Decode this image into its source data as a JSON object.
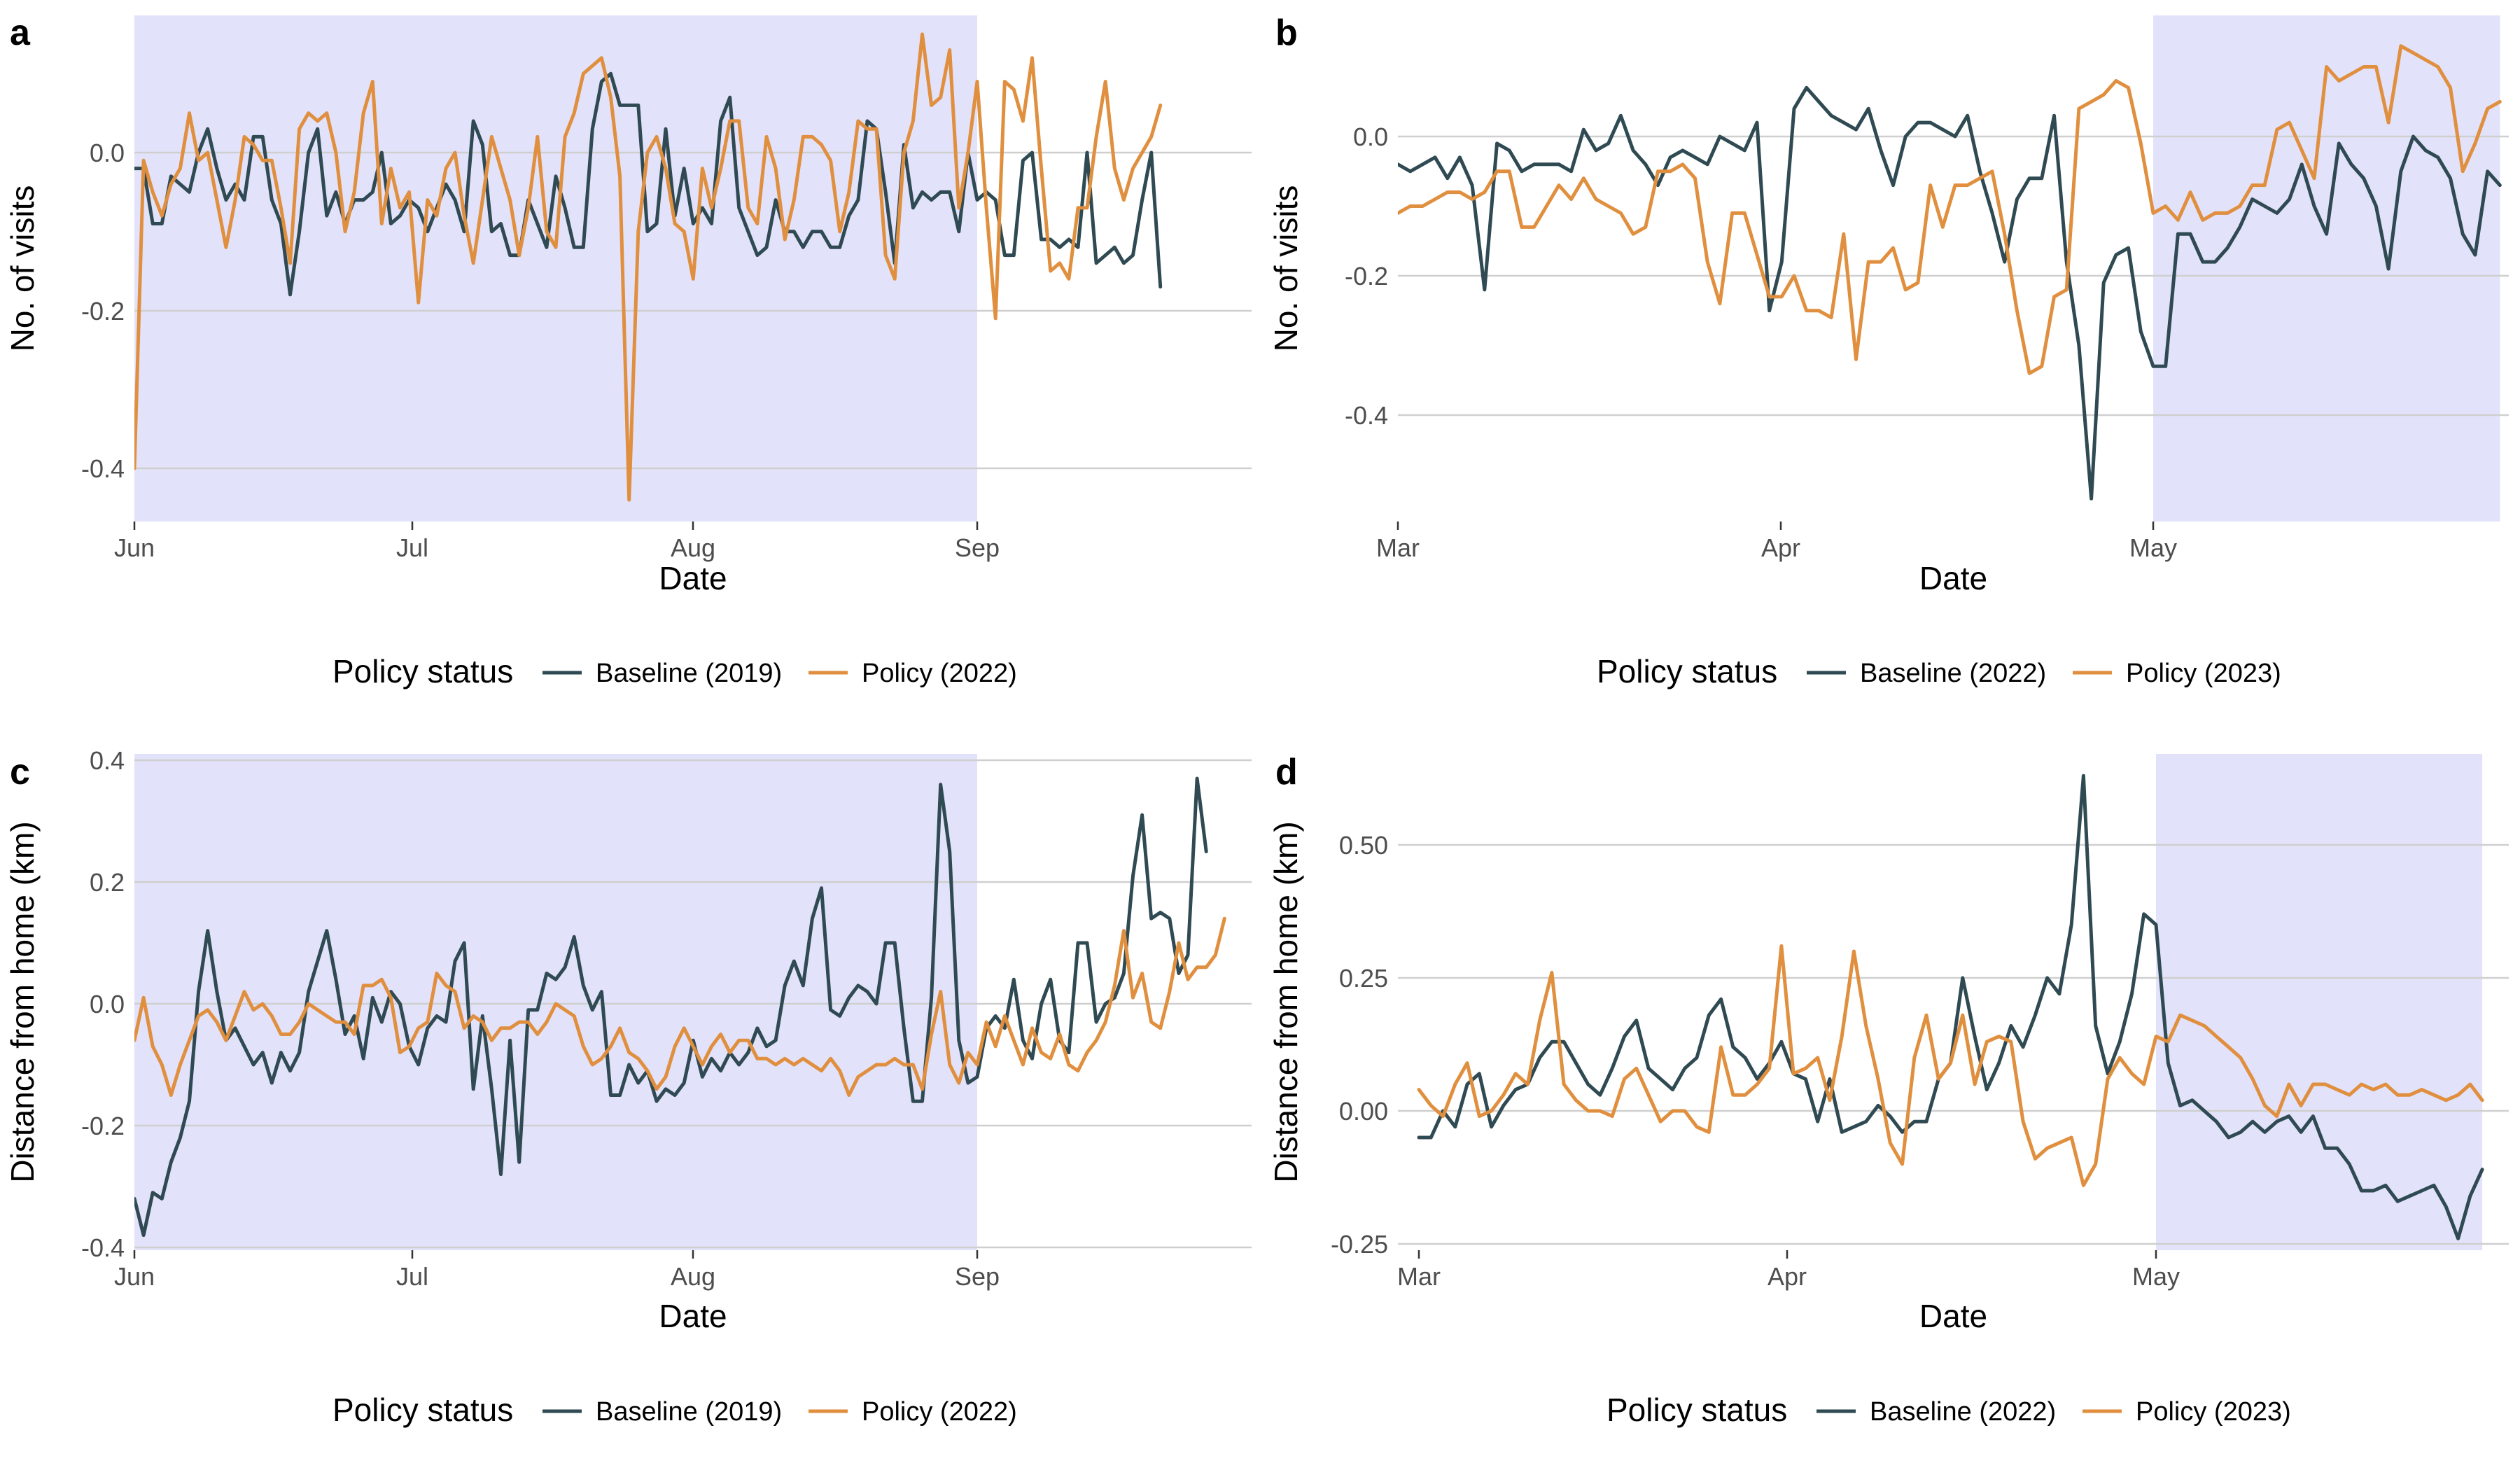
{
  "colors": {
    "baseline": "#2f4a52",
    "policy": "#e08f3e",
    "shade": "#e2e2fb",
    "grid": "#cfcfcf"
  },
  "legend": {
    "title": "Policy status"
  },
  "chart_data": [
    {
      "panel": "a",
      "type": "line",
      "xlabel": "Date",
      "ylabel": "No. of visits",
      "x_start": "2019-06-01",
      "x_range": [
        "Jun",
        "end of Sep"
      ],
      "xticks": [
        "Jun",
        "Jul",
        "Aug",
        "Sep"
      ],
      "yticks": [
        "0.0",
        "-0.2",
        "-0.4"
      ],
      "ylim": [
        -0.46,
        0.175
      ],
      "policy_period_shaded": "Jun 1 - Sep 1",
      "series": [
        {
          "name": "Baseline (2019)",
          "color_key": "baseline",
          "values": [
            -0.02,
            -0.02,
            -0.09,
            -0.09,
            -0.03,
            -0.04,
            -0.05,
            0.0,
            0.03,
            -0.02,
            -0.06,
            -0.04,
            -0.06,
            0.02,
            0.02,
            -0.06,
            -0.09,
            -0.18,
            -0.1,
            0.0,
            0.03,
            -0.08,
            -0.05,
            -0.09,
            -0.06,
            -0.06,
            -0.05,
            0.0,
            -0.09,
            -0.08,
            -0.06,
            -0.07,
            -0.1,
            -0.07,
            -0.04,
            -0.06,
            -0.1,
            0.04,
            0.01,
            -0.1,
            -0.09,
            -0.13,
            -0.13,
            -0.06,
            -0.09,
            -0.12,
            -0.03,
            -0.07,
            -0.12,
            -0.12,
            0.03,
            0.09,
            0.1,
            0.06,
            0.06,
            0.06,
            -0.1,
            -0.09,
            0.03,
            -0.08,
            -0.02,
            -0.09,
            -0.07,
            -0.09,
            0.04,
            0.07,
            -0.07,
            -0.1,
            -0.13,
            -0.12,
            -0.06,
            -0.1,
            -0.1,
            -0.12,
            -0.1,
            -0.1,
            -0.12,
            -0.12,
            -0.08,
            -0.06,
            0.04,
            0.03,
            -0.05,
            -0.14,
            0.01,
            -0.07,
            -0.05,
            -0.06,
            -0.05,
            -0.05,
            -0.1,
            0.0,
            -0.06,
            -0.05,
            -0.06,
            -0.13,
            -0.13,
            -0.01,
            0.0,
            -0.11,
            -0.11,
            -0.12,
            -0.11,
            -0.12,
            0.0,
            -0.14,
            -0.13,
            -0.12,
            -0.14,
            -0.13,
            -0.06,
            0.0,
            -0.17
          ]
        },
        {
          "name": "Policy (2022)",
          "color_key": "policy",
          "values": [
            -0.4,
            -0.01,
            -0.05,
            -0.08,
            -0.04,
            -0.02,
            0.05,
            -0.01,
            0.0,
            -0.06,
            -0.12,
            -0.06,
            0.02,
            0.01,
            -0.01,
            -0.01,
            -0.07,
            -0.14,
            0.03,
            0.05,
            0.04,
            0.05,
            0.0,
            -0.1,
            -0.05,
            0.05,
            0.09,
            -0.09,
            -0.02,
            -0.07,
            -0.05,
            -0.19,
            -0.06,
            -0.08,
            -0.02,
            0.0,
            -0.08,
            -0.14,
            -0.06,
            0.02,
            -0.02,
            -0.06,
            -0.13,
            -0.07,
            0.02,
            -0.1,
            -0.12,
            0.02,
            0.05,
            0.1,
            0.11,
            0.12,
            0.07,
            -0.03,
            -0.44,
            -0.1,
            0.0,
            0.02,
            -0.02,
            -0.09,
            -0.1,
            -0.16,
            -0.02,
            -0.07,
            -0.02,
            0.04,
            0.04,
            -0.07,
            -0.09,
            0.02,
            -0.02,
            -0.11,
            -0.06,
            0.02,
            0.02,
            0.01,
            -0.01,
            -0.1,
            -0.05,
            0.04,
            0.03,
            0.03,
            -0.13,
            -0.16,
            0.0,
            0.04,
            0.15,
            0.06,
            0.07,
            0.13,
            -0.07,
            0.0,
            0.09,
            -0.07,
            -0.21,
            0.09,
            0.08,
            0.04,
            0.12,
            -0.02,
            -0.15,
            -0.14,
            -0.16,
            -0.07,
            -0.07,
            0.02,
            0.09,
            -0.02,
            -0.06,
            -0.02,
            0.0,
            0.02,
            0.06
          ]
        }
      ]
    },
    {
      "panel": "b",
      "type": "line",
      "xlabel": "Date",
      "ylabel": "No. of visits",
      "x_start": "2022-03-01",
      "x_range": [
        "Mar",
        "end of May"
      ],
      "xticks": [
        "Mar",
        "Apr",
        "May"
      ],
      "yticks": [
        "0.0",
        "-0.2",
        "-0.4"
      ],
      "ylim": [
        -0.56,
        0.175
      ],
      "policy_period_shaded": "May 1 - end of May",
      "series": [
        {
          "name": "Baseline (2022)",
          "color_key": "baseline",
          "values": [
            -0.04,
            -0.05,
            -0.04,
            -0.03,
            -0.06,
            -0.03,
            -0.07,
            -0.22,
            -0.01,
            -0.02,
            -0.05,
            -0.04,
            -0.04,
            -0.04,
            -0.05,
            0.01,
            -0.02,
            -0.01,
            0.03,
            -0.02,
            -0.04,
            -0.07,
            -0.03,
            -0.02,
            -0.03,
            -0.04,
            0.0,
            -0.01,
            -0.02,
            0.02,
            -0.25,
            -0.18,
            0.04,
            0.07,
            0.05,
            0.03,
            0.02,
            0.01,
            0.04,
            -0.02,
            -0.07,
            0.0,
            0.02,
            0.02,
            0.01,
            0.0,
            0.03,
            -0.05,
            -0.11,
            -0.18,
            -0.09,
            -0.06,
            -0.06,
            0.03,
            -0.18,
            -0.3,
            -0.52,
            -0.21,
            -0.17,
            -0.16,
            -0.28,
            -0.33,
            -0.33,
            -0.14,
            -0.14,
            -0.18,
            -0.18,
            -0.16,
            -0.13,
            -0.09,
            -0.1,
            -0.11,
            -0.09,
            -0.04,
            -0.1,
            -0.14,
            -0.01,
            -0.04,
            -0.06,
            -0.1,
            -0.19,
            -0.05,
            0.0,
            -0.02,
            -0.03,
            -0.06,
            -0.14,
            -0.17,
            -0.05,
            -0.07
          ]
        },
        {
          "name": "Policy (2023)",
          "color_key": "policy",
          "values": [
            -0.11,
            -0.1,
            -0.1,
            -0.09,
            -0.08,
            -0.08,
            -0.09,
            -0.08,
            -0.05,
            -0.05,
            -0.13,
            -0.13,
            -0.1,
            -0.07,
            -0.09,
            -0.06,
            -0.09,
            -0.1,
            -0.11,
            -0.14,
            -0.13,
            -0.05,
            -0.05,
            -0.04,
            -0.06,
            -0.18,
            -0.24,
            -0.11,
            -0.11,
            -0.17,
            -0.23,
            -0.23,
            -0.2,
            -0.25,
            -0.25,
            -0.26,
            -0.14,
            -0.32,
            -0.18,
            -0.18,
            -0.16,
            -0.22,
            -0.21,
            -0.07,
            -0.13,
            -0.07,
            -0.07,
            -0.06,
            -0.05,
            -0.14,
            -0.25,
            -0.34,
            -0.33,
            -0.23,
            -0.22,
            0.04,
            0.05,
            0.06,
            0.08,
            0.07,
            -0.01,
            -0.11,
            -0.1,
            -0.12,
            -0.08,
            -0.12,
            -0.11,
            -0.11,
            -0.1,
            -0.07,
            -0.07,
            0.01,
            0.02,
            -0.02,
            -0.06,
            0.1,
            0.08,
            0.09,
            0.1,
            0.1,
            0.02,
            0.13,
            0.12,
            0.11,
            0.1,
            0.07,
            -0.05,
            -0.01,
            0.04,
            0.05
          ]
        }
      ]
    },
    {
      "panel": "c",
      "type": "line",
      "xlabel": "Date",
      "ylabel": "Distance from home (km)",
      "x_start": "2019-06-01",
      "x_range": [
        "Jun",
        "end of Sep"
      ],
      "xticks": [
        "Jun",
        "Jul",
        "Aug",
        "Sep"
      ],
      "yticks": [
        "0.4",
        "0.2",
        "0.0",
        "-0.2",
        "-0.4"
      ],
      "ylim": [
        -0.405,
        0.41
      ],
      "policy_period_shaded": "Jun 1 - Sep 1",
      "series": [
        {
          "name": "Baseline (2019)",
          "color_key": "baseline",
          "values": [
            -0.32,
            -0.38,
            -0.31,
            -0.32,
            -0.26,
            -0.22,
            -0.16,
            0.02,
            0.12,
            0.02,
            -0.06,
            -0.04,
            -0.07,
            -0.1,
            -0.08,
            -0.13,
            -0.08,
            -0.11,
            -0.08,
            0.02,
            0.07,
            0.12,
            0.04,
            -0.05,
            -0.02,
            -0.09,
            0.01,
            -0.03,
            0.02,
            0.0,
            -0.07,
            -0.1,
            -0.04,
            -0.02,
            -0.03,
            0.07,
            0.1,
            -0.14,
            -0.02,
            -0.14,
            -0.28,
            -0.06,
            -0.26,
            -0.01,
            -0.01,
            0.05,
            0.04,
            0.06,
            0.11,
            0.03,
            -0.01,
            0.02,
            -0.15,
            -0.15,
            -0.1,
            -0.13,
            -0.11,
            -0.16,
            -0.14,
            -0.15,
            -0.13,
            -0.06,
            -0.12,
            -0.09,
            -0.11,
            -0.08,
            -0.1,
            -0.08,
            -0.04,
            -0.07,
            -0.06,
            0.03,
            0.07,
            0.03,
            0.14,
            0.19,
            -0.01,
            -0.02,
            0.01,
            0.03,
            0.02,
            0.0,
            0.1,
            0.1,
            -0.04,
            -0.16,
            -0.16,
            0.01,
            0.36,
            0.25,
            -0.06,
            -0.13,
            -0.12,
            -0.04,
            -0.02,
            -0.04,
            0.04,
            -0.06,
            -0.09,
            0.0,
            0.04,
            -0.06,
            -0.08,
            0.1,
            0.1,
            -0.03,
            0.0,
            0.01,
            0.05,
            0.21,
            0.31,
            0.14,
            0.15,
            0.14,
            0.05,
            0.08,
            0.37,
            0.25
          ]
        },
        {
          "name": "Policy (2022)",
          "color_key": "policy",
          "values": [
            -0.06,
            0.01,
            -0.07,
            -0.1,
            -0.15,
            -0.1,
            -0.06,
            -0.02,
            -0.01,
            -0.03,
            -0.06,
            -0.02,
            0.02,
            -0.01,
            0.0,
            -0.02,
            -0.05,
            -0.05,
            -0.03,
            0.0,
            -0.01,
            -0.02,
            -0.03,
            -0.03,
            -0.05,
            0.03,
            0.03,
            0.04,
            0.01,
            -0.08,
            -0.07,
            -0.04,
            -0.03,
            0.05,
            0.03,
            0.02,
            -0.04,
            -0.02,
            -0.03,
            -0.06,
            -0.04,
            -0.04,
            -0.03,
            -0.03,
            -0.05,
            -0.03,
            0.0,
            -0.01,
            -0.02,
            -0.07,
            -0.1,
            -0.09,
            -0.07,
            -0.04,
            -0.08,
            -0.09,
            -0.11,
            -0.14,
            -0.12,
            -0.07,
            -0.04,
            -0.07,
            -0.1,
            -0.07,
            -0.05,
            -0.08,
            -0.06,
            -0.06,
            -0.09,
            -0.09,
            -0.1,
            -0.09,
            -0.1,
            -0.09,
            -0.1,
            -0.11,
            -0.09,
            -0.11,
            -0.15,
            -0.12,
            -0.11,
            -0.1,
            -0.1,
            -0.09,
            -0.1,
            -0.1,
            -0.14,
            -0.05,
            0.02,
            -0.1,
            -0.13,
            -0.08,
            -0.1,
            -0.03,
            -0.07,
            -0.02,
            -0.06,
            -0.1,
            -0.04,
            -0.08,
            -0.09,
            -0.05,
            -0.1,
            -0.11,
            -0.08,
            -0.06,
            -0.03,
            0.03,
            0.12,
            0.01,
            0.05,
            -0.03,
            -0.04,
            0.02,
            0.1,
            0.04,
            0.06,
            0.06,
            0.08,
            0.14
          ]
        }
      ]
    },
    {
      "panel": "d",
      "type": "line",
      "xlabel": "Date",
      "ylabel": "Distance from home (km)",
      "x_start": "2022-03-01",
      "x_range": [
        "Mar",
        "end of May"
      ],
      "xticks": [
        "Mar",
        "Apr",
        "May"
      ],
      "yticks": [
        "0.50",
        "0.25",
        "0.00",
        "-0.25"
      ],
      "ylim": [
        -0.28,
        0.67
      ],
      "policy_period_shaded": "May 1 - end of May",
      "series": [
        {
          "name": "Baseline (2022)",
          "color_key": "baseline",
          "values": [
            -0.05,
            -0.05,
            0.0,
            -0.03,
            0.05,
            0.07,
            -0.03,
            0.01,
            0.04,
            0.05,
            0.1,
            0.13,
            0.13,
            0.09,
            0.05,
            0.03,
            0.08,
            0.14,
            0.17,
            0.08,
            0.06,
            0.04,
            0.08,
            0.1,
            0.18,
            0.21,
            0.12,
            0.1,
            0.06,
            0.09,
            0.13,
            0.07,
            0.06,
            -0.02,
            0.06,
            -0.04,
            -0.03,
            -0.02,
            0.01,
            -0.01,
            -0.04,
            -0.02,
            -0.02,
            0.06,
            0.09,
            0.25,
            0.14,
            0.04,
            0.09,
            0.16,
            0.12,
            0.18,
            0.25,
            0.22,
            0.35,
            0.63,
            0.16,
            0.07,
            0.13,
            0.22,
            0.37,
            0.35,
            0.09,
            0.01,
            0.02,
            0.0,
            -0.02,
            -0.05,
            -0.04,
            -0.02,
            -0.04,
            -0.02,
            -0.01,
            -0.04,
            -0.01,
            -0.07,
            -0.07,
            -0.1,
            -0.15,
            -0.15,
            -0.14,
            -0.17,
            -0.16,
            -0.15,
            -0.14,
            -0.18,
            -0.24,
            -0.16,
            -0.11
          ]
        },
        {
          "name": "Policy (2023)",
          "color_key": "policy",
          "values": [
            0.04,
            0.01,
            -0.01,
            0.05,
            0.09,
            -0.01,
            0.0,
            0.03,
            0.07,
            0.05,
            0.17,
            0.26,
            0.05,
            0.02,
            0.0,
            0.0,
            -0.01,
            0.06,
            0.08,
            0.03,
            -0.02,
            0.0,
            0.0,
            -0.03,
            -0.04,
            0.12,
            0.03,
            0.03,
            0.05,
            0.08,
            0.31,
            0.07,
            0.08,
            0.1,
            0.02,
            0.14,
            0.3,
            0.16,
            0.06,
            -0.06,
            -0.1,
            0.1,
            0.18,
            0.06,
            0.09,
            0.18,
            0.05,
            0.13,
            0.14,
            0.13,
            -0.02,
            -0.09,
            -0.07,
            -0.06,
            -0.05,
            -0.14,
            -0.1,
            0.06,
            0.1,
            0.07,
            0.05,
            0.14,
            0.13,
            0.18,
            0.17,
            0.16,
            0.14,
            0.12,
            0.1,
            0.06,
            0.01,
            -0.01,
            0.05,
            0.01,
            0.05,
            0.05,
            0.04,
            0.03,
            0.05,
            0.04,
            0.05,
            0.03,
            0.03,
            0.04,
            0.03,
            0.02,
            0.03,
            0.05,
            0.02
          ]
        }
      ]
    }
  ]
}
